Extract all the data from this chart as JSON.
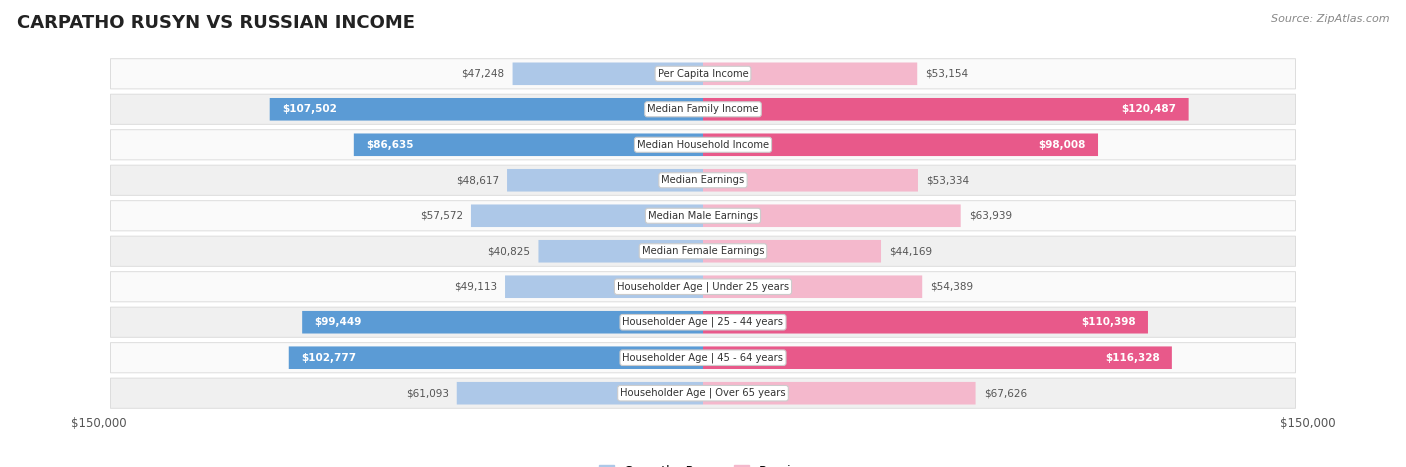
{
  "title": "CARPATHO RUSYN VS RUSSIAN INCOME",
  "source": "Source: ZipAtlas.com",
  "categories": [
    "Per Capita Income",
    "Median Family Income",
    "Median Household Income",
    "Median Earnings",
    "Median Male Earnings",
    "Median Female Earnings",
    "Householder Age | Under 25 years",
    "Householder Age | 25 - 44 years",
    "Householder Age | 45 - 64 years",
    "Householder Age | Over 65 years"
  ],
  "carpatho_rusyn": [
    47248,
    107502,
    86635,
    48617,
    57572,
    40825,
    49113,
    99449,
    102777,
    61093
  ],
  "russian": [
    53154,
    120487,
    98008,
    53334,
    63939,
    44169,
    54389,
    110398,
    116328,
    67626
  ],
  "max_val": 150000,
  "blue_light": "#adc8e8",
  "blue_dark": "#5b9bd5",
  "pink_light": "#f4b8cc",
  "pink_dark": "#e8598a",
  "row_bg_odd": "#f0f0f0",
  "row_bg_even": "#fafafa",
  "title_color": "#222222",
  "source_color": "#888888",
  "outside_label_color": "#555555",
  "inside_label_color": "#ffffff",
  "center_label_bg": "#ffffff",
  "center_label_border": "#cccccc",
  "inside_threshold": 75000
}
